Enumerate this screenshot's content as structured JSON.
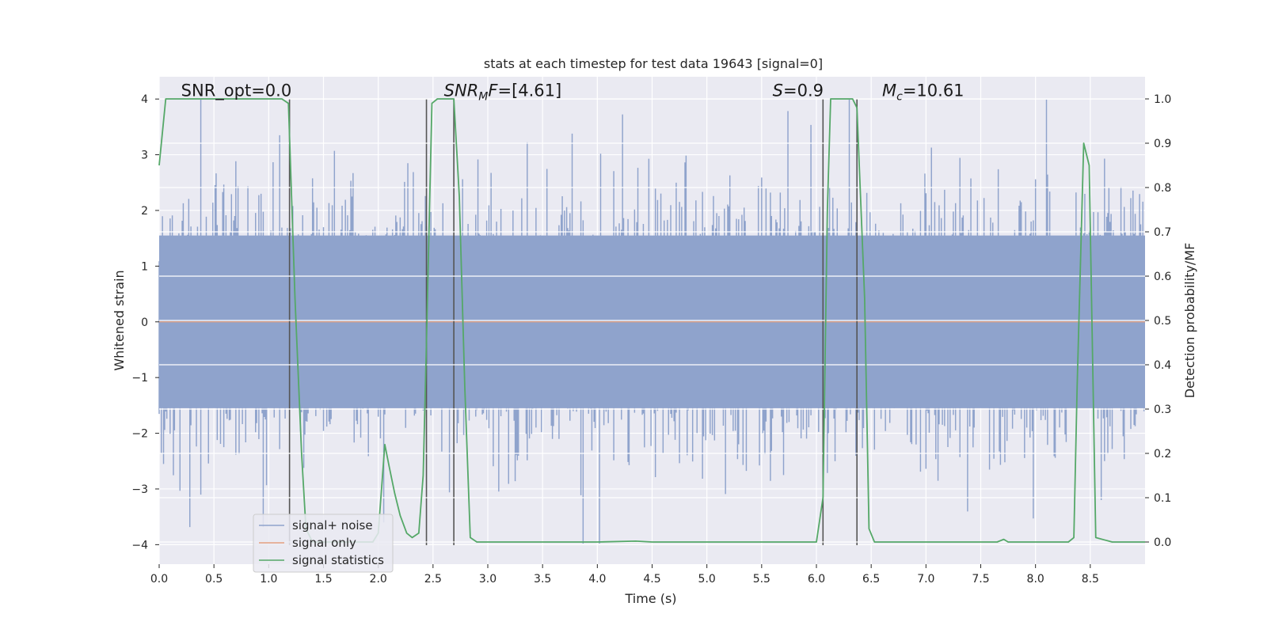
{
  "chart_data": {
    "type": "line",
    "title": "stats at each timestep for test data 19643 [signal=0]",
    "xlabel": "Time (s)",
    "ylabel": "Whitened strain",
    "ylabel_right": "Detection probability/MF",
    "xlim": [
      0.0,
      9.0
    ],
    "ylim": [
      -4.35,
      4.4
    ],
    "ylim_right": [
      -0.05,
      1.05
    ],
    "x_ticks": [
      0.0,
      0.5,
      1.0,
      1.5,
      2.0,
      2.5,
      3.0,
      3.5,
      4.0,
      4.5,
      5.0,
      5.5,
      6.0,
      6.5,
      7.0,
      7.5,
      8.0,
      8.5
    ],
    "x_tick_labels": [
      "0.0",
      "0.5",
      "1.0",
      "1.5",
      "2.0",
      "2.5",
      "3.0",
      "3.5",
      "4.0",
      "4.5",
      "5.0",
      "5.5",
      "6.0",
      "6.5",
      "7.0",
      "7.5",
      "8.0",
      "8.5"
    ],
    "y_ticks": [
      4,
      3,
      2,
      1,
      0,
      -1,
      -2,
      -3,
      -4
    ],
    "y_tick_labels": [
      "4",
      "3",
      "2",
      "1",
      "0",
      "−1",
      "−2",
      "−3",
      "−4"
    ],
    "y_ticks_right": [
      1.0,
      0.9,
      0.8,
      0.7,
      0.6,
      0.5,
      0.4,
      0.3,
      0.2,
      0.1,
      0.0
    ],
    "y_tick_labels_right": [
      "1.0",
      "0.9",
      "0.8",
      "0.7",
      "0.6",
      "0.5",
      "0.4",
      "0.3",
      "0.2",
      "0.1",
      "0.0"
    ],
    "grid": true,
    "legend_position": "lower-left",
    "annotations": [
      {
        "text": "SNR_opt=0.0",
        "x": 0.2,
        "y": 4.05,
        "italic": false
      },
      {
        "text": "SNR_MF=[4.61]",
        "x": 2.6,
        "y": 4.05,
        "italic": true
      },
      {
        "text": "S=0.9",
        "x": 5.6,
        "y": 4.05,
        "italic": true
      },
      {
        "text": "M_c=10.61",
        "x": 6.6,
        "y": 4.05,
        "italic": true
      }
    ],
    "vertical_lines_x": [
      1.19,
      2.44,
      2.69,
      6.06,
      6.37
    ],
    "series": [
      {
        "name": "signal+ noise",
        "color": "#8fa3cc",
        "axis": "left",
        "kind": "noise",
        "stats": {
          "n": 900,
          "sigma": 1.0,
          "max": 3.99,
          "min": -3.98
        }
      },
      {
        "name": "signal only",
        "color": "#e4a07f",
        "axis": "left",
        "kind": "line",
        "x": [
          0.0,
          9.0
        ],
        "y": [
          0.0,
          0.0
        ]
      },
      {
        "name": "signal statistics",
        "color": "#55a868",
        "axis": "right",
        "kind": "line",
        "x": [
          0.0,
          0.06,
          0.12,
          0.5,
          1.0,
          1.12,
          1.18,
          1.24,
          1.3,
          1.34,
          1.4,
          1.6,
          1.8,
          1.95,
          2.0,
          2.06,
          2.1,
          2.15,
          2.2,
          2.26,
          2.31,
          2.37,
          2.41,
          2.44,
          2.49,
          2.54,
          2.62,
          2.69,
          2.74,
          2.79,
          2.84,
          2.9,
          3.2,
          3.5,
          4.0,
          4.35,
          4.5,
          5.0,
          5.5,
          5.9,
          6.0,
          6.06,
          6.1,
          6.13,
          6.2,
          6.33,
          6.37,
          6.44,
          6.48,
          6.53,
          6.6,
          7.0,
          7.5,
          7.65,
          7.71,
          7.75,
          8.0,
          8.25,
          8.3,
          8.35,
          8.38,
          8.44,
          8.49,
          8.55,
          8.7,
          9.0
        ],
        "y": [
          0.85,
          1.0,
          1.0,
          1.0,
          1.0,
          1.0,
          0.99,
          0.55,
          0.2,
          0.03,
          0.0,
          0.0,
          0.0,
          0.0,
          0.02,
          0.22,
          0.17,
          0.11,
          0.06,
          0.02,
          0.01,
          0.02,
          0.15,
          0.45,
          0.99,
          1.0,
          1.0,
          1.0,
          0.78,
          0.35,
          0.01,
          0.0,
          0.0,
          0.0,
          0.0,
          0.002,
          0.0,
          0.0,
          0.0,
          0.0,
          0.0,
          0.1,
          0.75,
          1.0,
          1.0,
          1.0,
          0.98,
          0.55,
          0.03,
          0.0,
          0.0,
          0.0,
          0.0,
          0.0,
          0.006,
          0.0,
          0.0,
          0.0,
          0.0,
          0.01,
          0.35,
          0.9,
          0.85,
          0.01,
          0.0,
          0.0
        ]
      }
    ]
  }
}
